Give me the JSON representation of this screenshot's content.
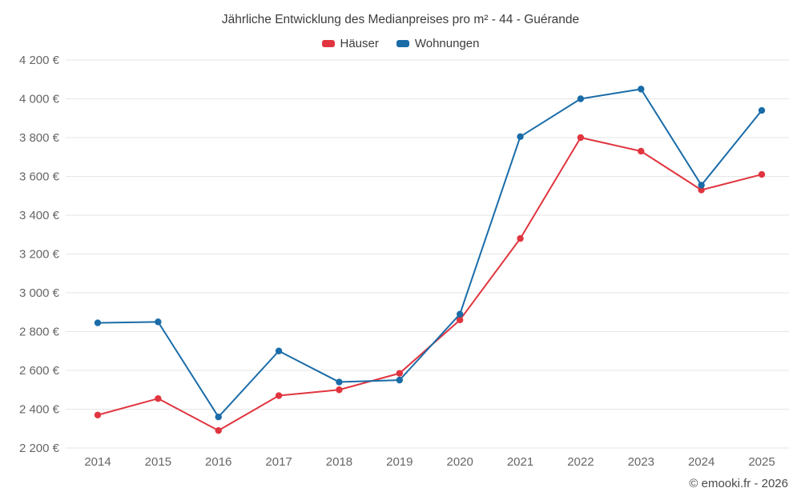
{
  "title": "Jährliche Entwicklung des Medianpreises pro m² - 44 - Guérande",
  "copyright": "© emooki.fr - 2026",
  "chart_data": {
    "type": "line",
    "title": "Jährliche Entwicklung des Medianpreises pro m² - 44 - Guérande",
    "categories": [
      "2014",
      "2015",
      "2016",
      "2017",
      "2018",
      "2019",
      "2020",
      "2021",
      "2022",
      "2023",
      "2024",
      "2025"
    ],
    "series": [
      {
        "name": "Häuser",
        "color": "#e0353f",
        "values": [
          2370,
          2455,
          2290,
          2470,
          2500,
          2585,
          2860,
          3280,
          3800,
          3730,
          3530,
          3610
        ]
      },
      {
        "name": "Wohnungen",
        "color": "#1a6ca8",
        "values": [
          2845,
          2850,
          2360,
          2700,
          2540,
          2550,
          2890,
          3805,
          4000,
          4050,
          3555,
          3940
        ]
      }
    ],
    "ylim": [
      2200,
      4200
    ],
    "y_tick_values": [
      2200,
      2400,
      2600,
      2800,
      3000,
      3200,
      3400,
      3600,
      3800,
      4000,
      4200
    ],
    "y_tick_labels": [
      "2 200 €",
      "2 400 €",
      "2 600 €",
      "2 800 €",
      "3 000 €",
      "3 200 €",
      "3 400 €",
      "3 600 €",
      "3 800 €",
      "4 000 €",
      "4 200 €"
    ],
    "grid": true,
    "legend_position": "top",
    "xlabel": "",
    "ylabel": ""
  }
}
